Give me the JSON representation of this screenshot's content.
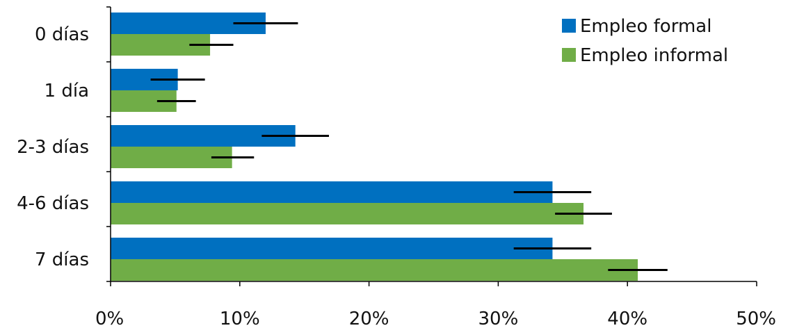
{
  "chart_data": {
    "type": "bar",
    "orientation": "horizontal",
    "categories": [
      "0 días",
      "1 día",
      "2-3 días",
      "4-6 días",
      "7 días"
    ],
    "series": [
      {
        "name": "Empleo formal",
        "color": "#0070C0",
        "values": [
          12.0,
          5.2,
          14.3,
          34.2,
          34.2
        ],
        "error_low": [
          9.5,
          3.1,
          11.7,
          31.2,
          31.2
        ],
        "error_high": [
          14.5,
          7.3,
          16.9,
          37.2,
          37.2
        ]
      },
      {
        "name": "Empleo informal",
        "color": "#70AD47",
        "values": [
          7.7,
          5.1,
          9.4,
          36.6,
          40.8
        ],
        "error_low": [
          6.1,
          3.6,
          7.8,
          34.4,
          38.5
        ],
        "error_high": [
          9.5,
          6.6,
          11.1,
          38.8,
          43.1
        ]
      }
    ],
    "x_ticks": [
      "0%",
      "10%",
      "20%",
      "30%",
      "40%",
      "50%"
    ],
    "xlim": [
      0,
      50
    ],
    "legend_position": "top-right",
    "grid": false
  }
}
